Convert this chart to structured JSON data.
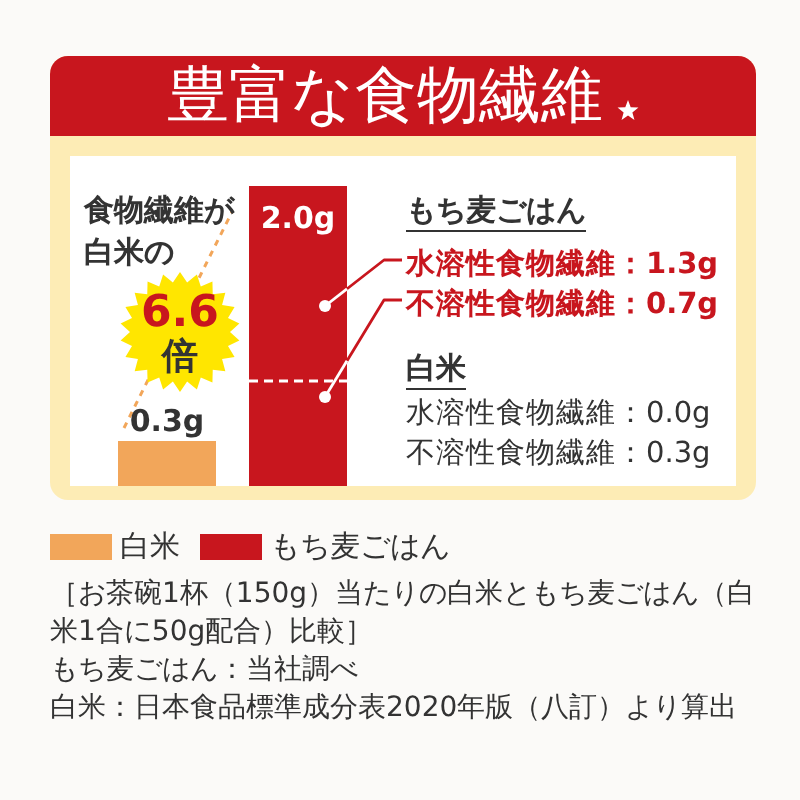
{
  "chart_data": {
    "type": "bar",
    "title": "豊富な食物繊維",
    "categories": [
      null,
      null
    ],
    "series": [
      {
        "name": "白米",
        "color": "#f2a65a",
        "values": [
          0.3,
          null
        ],
        "value_labels": [
          "0.3g",
          null
        ]
      },
      {
        "name": "もち麦ごはん",
        "color": "#c8161e",
        "values": [
          null,
          0.7
        ],
        "value_labels": [
          null,
          "不溶性食物繊維：0.7g"
        ]
      },
      {
        "color": "#c8161e",
        "values": [
          null,
          1.3
        ],
        "value_labels": [
          null,
          "水溶性食物繊維：1.3g"
        ]
      }
    ],
    "stacked": true,
    "totals": [
      null,
      "2.0g"
    ],
    "legend": "bottom",
    "annotations": [
      "食物繊維が白米の",
      "6.6",
      "倍",
      "もち麦ごはん",
      "白米",
      "水溶性食物繊維：0.0g",
      "不溶性食物繊維：0.3g",
      "［お茶碗1杯（150g）当たりの白米ともち麦ごはん（白米1合に50g配合）比較］",
      "もち麦ごはん：当社調べ",
      "白米：日本食品標準成分表2020年版（八訂）より算出"
    ]
  }
}
